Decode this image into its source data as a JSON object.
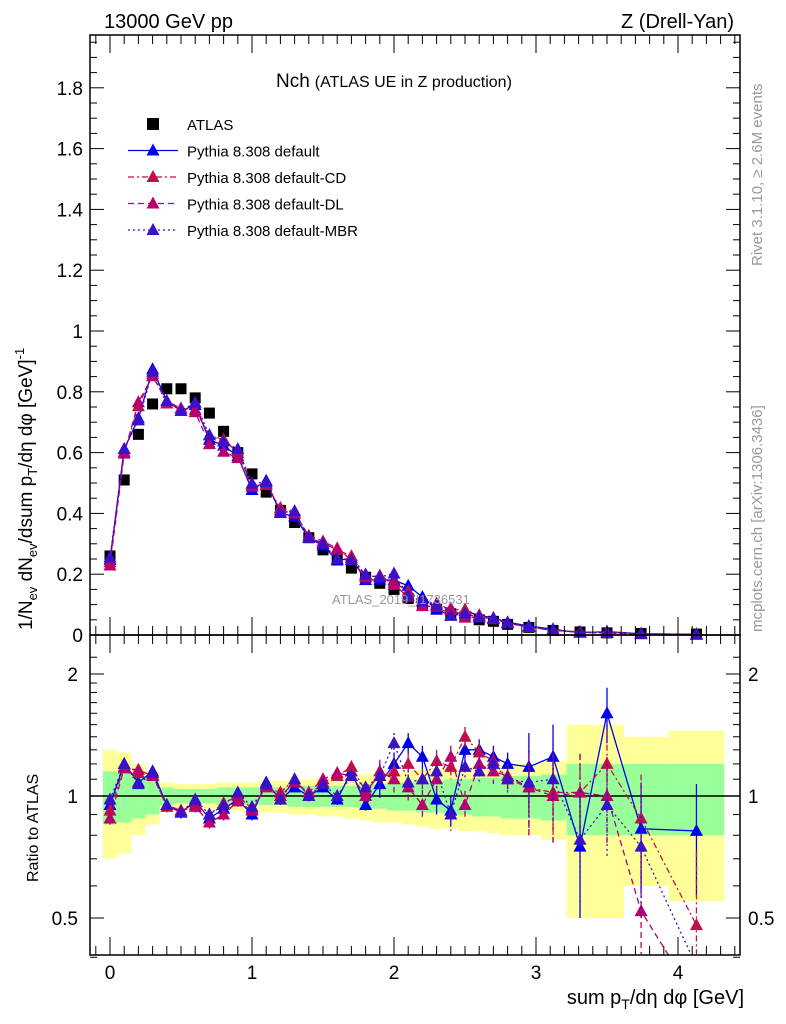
{
  "header": {
    "left": "13000 GeV pp",
    "right": "Z (Drell-Yan)"
  },
  "side_labels": {
    "rivet": "Rivet 3.1.10, ≥ 2.6M events",
    "mcplots": "mcplots.cern.ch [arXiv:1306.3436]"
  },
  "watermark": "ATLAS_2019_I1736531",
  "chart_data": [
    {
      "type": "scatter",
      "title_main": "Nch",
      "title_sub": "(ATLAS UE in Z production)",
      "ylabel": {
        "p1": "1/N",
        "s1": "ev",
        "p2": " dN",
        "s2": "ev",
        "p3": "/dsum p",
        "s3": "T",
        "p4": "/dη dφ  [GeV]",
        "sup": "-1"
      },
      "xlabel": {
        "p1": "sum p",
        "s1": "T",
        "p2": "/dη dφ [GeV]"
      },
      "xlim": [
        -0.15,
        4.4
      ],
      "ylim": [
        0,
        1.97
      ],
      "yticks": [
        "0",
        "0.2",
        "0.4",
        "0.6",
        "0.8",
        "1",
        "1.2",
        "1.4",
        "1.6",
        "1.8"
      ],
      "xticks": [
        "0",
        "1",
        "2",
        "3",
        "4"
      ],
      "x": [
        0,
        0.1,
        0.2,
        0.3,
        0.4,
        0.5,
        0.6,
        0.7,
        0.8,
        0.9,
        1.0,
        1.1,
        1.2,
        1.3,
        1.4,
        1.5,
        1.6,
        1.7,
        1.8,
        1.9,
        2.0,
        2.1,
        2.2,
        2.3,
        2.4,
        2.5,
        2.6,
        2.7,
        2.8,
        2.95,
        3.12,
        3.31,
        3.5,
        3.74,
        4.13
      ],
      "data": {
        "name": "ATLAS",
        "color": "#000000",
        "values": [
          0.26,
          0.51,
          0.66,
          0.76,
          0.81,
          0.81,
          0.78,
          0.73,
          0.67,
          0.6,
          0.53,
          0.47,
          0.41,
          0.37,
          0.32,
          0.28,
          0.25,
          0.22,
          0.19,
          0.17,
          0.15,
          0.12,
          0.1,
          0.085,
          0.07,
          0.06,
          0.05,
          0.045,
          0.035,
          0.025,
          0.015,
          0.01,
          0.007,
          0.005,
          0.003
        ]
      },
      "legend": [
        "ATLAS",
        "Pythia 8.308 default",
        "Pythia 8.308 default-CD",
        "Pythia 8.308 default-DL",
        "Pythia 8.308 default-MBR"
      ],
      "series": [
        {
          "name": "Pythia 8.308 default",
          "color": "#0000ee",
          "dash": "",
          "ratio": [
            0.95,
            1.2,
            1.08,
            1.15,
            0.95,
            0.91,
            0.97,
            0.88,
            0.93,
            0.98,
            0.9,
            1.08,
            0.98,
            1.05,
            1.0,
            1.05,
            0.98,
            1.15,
            0.95,
            1.07,
            1.2,
            1.35,
            1.25,
            0.98,
            0.92,
            1.3,
            1.3,
            1.25,
            1.2,
            1.18,
            1.25,
            0.75,
            1.6,
            0.83,
            0.82
          ]
        },
        {
          "name": "Pythia 8.308 default-CD",
          "color": "#c0104a",
          "dash": "6,3,2,3",
          "ratio": [
            0.92,
            1.18,
            1.14,
            1.13,
            0.94,
            0.92,
            0.95,
            0.9,
            0.96,
            1.0,
            0.93,
            1.05,
            1.02,
            1.1,
            1.0,
            1.08,
            1.12,
            1.18,
            1.03,
            1.12,
            1.15,
            1.2,
            1.1,
            1.22,
            1.18,
            1.4,
            1.28,
            1.22,
            1.1,
            1.05,
            1.02,
            1.02,
            1.2,
            0.88,
            0.48
          ]
        },
        {
          "name": "Pythia 8.308 default-DL",
          "color": "#b8006e",
          "dash": "6,4",
          "ratio": [
            0.88,
            1.17,
            1.16,
            1.12,
            0.95,
            0.92,
            0.94,
            0.86,
            0.9,
            0.97,
            0.92,
            1.06,
            1.0,
            1.08,
            1.02,
            1.1,
            1.14,
            1.12,
            1.0,
            1.15,
            1.1,
            1.05,
            0.95,
            1.1,
            1.25,
            0.95,
            1.2,
            1.15,
            1.12,
            1.05,
            1.0,
            1.02,
            1.0,
            0.52,
            0.3
          ]
        },
        {
          "name": "Pythia 8.308 default-MBR",
          "color": "#3a10c8",
          "dash": "2,3",
          "ratio": [
            0.98,
            1.2,
            1.07,
            1.14,
            0.95,
            0.91,
            0.98,
            0.9,
            0.95,
            1.02,
            0.94,
            1.07,
            0.98,
            1.1,
            1.0,
            1.07,
            1.0,
            1.12,
            1.05,
            1.12,
            1.35,
            1.08,
            1.1,
            1.15,
            0.9,
            1.18,
            1.15,
            1.2,
            1.1,
            1.08,
            1.1,
            0.78,
            0.95,
            0.75,
            0.38
          ]
        }
      ],
      "ratio_panel": {
        "ylabel": "Ratio to ATLAS",
        "ylim": [
          0.36,
          2.4
        ],
        "yticks": [
          "0.5",
          "1",
          "2"
        ],
        "band_inner_halfwidth": [
          0.15,
          0.14,
          0.12,
          0.1,
          0.05,
          0.04,
          0.04,
          0.04,
          0.05,
          0.05,
          0.05,
          0.05,
          0.05,
          0.06,
          0.06,
          0.06,
          0.06,
          0.06,
          0.07,
          0.07,
          0.08,
          0.08,
          0.09,
          0.09,
          0.1,
          0.1,
          0.11,
          0.11,
          0.12,
          0.12,
          0.13,
          0.2,
          0.2,
          0.2,
          0.2
        ],
        "band_outer_halfwidth": [
          0.3,
          0.28,
          0.2,
          0.15,
          0.08,
          0.07,
          0.07,
          0.07,
          0.08,
          0.08,
          0.08,
          0.09,
          0.09,
          0.1,
          0.1,
          0.11,
          0.11,
          0.12,
          0.13,
          0.14,
          0.14,
          0.15,
          0.16,
          0.17,
          0.17,
          0.18,
          0.18,
          0.19,
          0.2,
          0.2,
          0.22,
          0.5,
          0.5,
          0.4,
          0.45
        ]
      },
      "colors": {
        "band_inner": "#99ff99",
        "band_outer": "#ffff99"
      }
    }
  ]
}
